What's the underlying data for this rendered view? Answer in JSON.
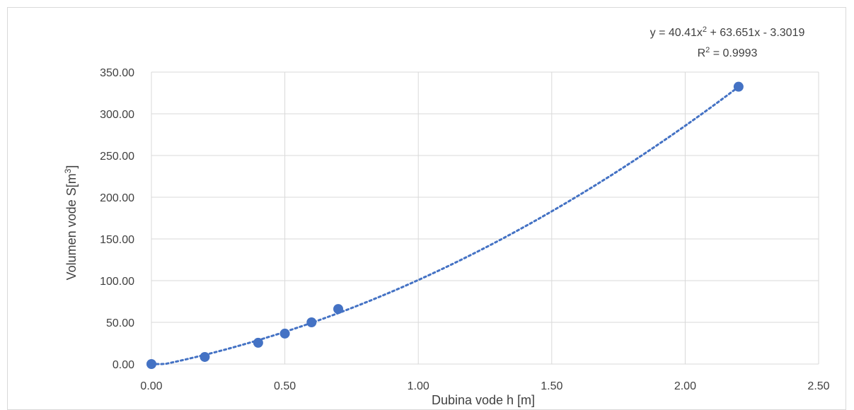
{
  "chart_data": {
    "type": "scatter",
    "xlabel": "Dubina vode h [m]",
    "ylabel_main": "Volumen vode S[m",
    "ylabel_sup": "3",
    "ylabel_end": "]",
    "xlim": [
      0,
      2.5
    ],
    "ylim": [
      0,
      350
    ],
    "x_ticks": [
      "0.00",
      "0.50",
      "1.00",
      "1.50",
      "2.00",
      "2.50"
    ],
    "y_ticks": [
      "0.00",
      "50.00",
      "100.00",
      "150.00",
      "200.00",
      "250.00",
      "300.00",
      "350.00"
    ],
    "grid": true,
    "series": [
      {
        "x": [
          0.0,
          0.2,
          0.4,
          0.5,
          0.6,
          0.7,
          2.2
        ],
        "y": [
          0.0,
          8.5,
          25.5,
          36.5,
          50.0,
          66.0,
          332.5
        ]
      }
    ],
    "trendline": {
      "type": "polynomial",
      "coefficients": [
        40.41,
        63.651,
        -3.3019
      ],
      "equation_parts": [
        "y = 40.41x",
        "2",
        " + 63.651x - 3.3019"
      ],
      "r2_parts": [
        "R",
        "2",
        " = 0.9993"
      ]
    },
    "colors": {
      "marker": "#4472c4",
      "trendline": "#4472c4",
      "grid": "#d9d9d9",
      "text": "#404040"
    }
  }
}
